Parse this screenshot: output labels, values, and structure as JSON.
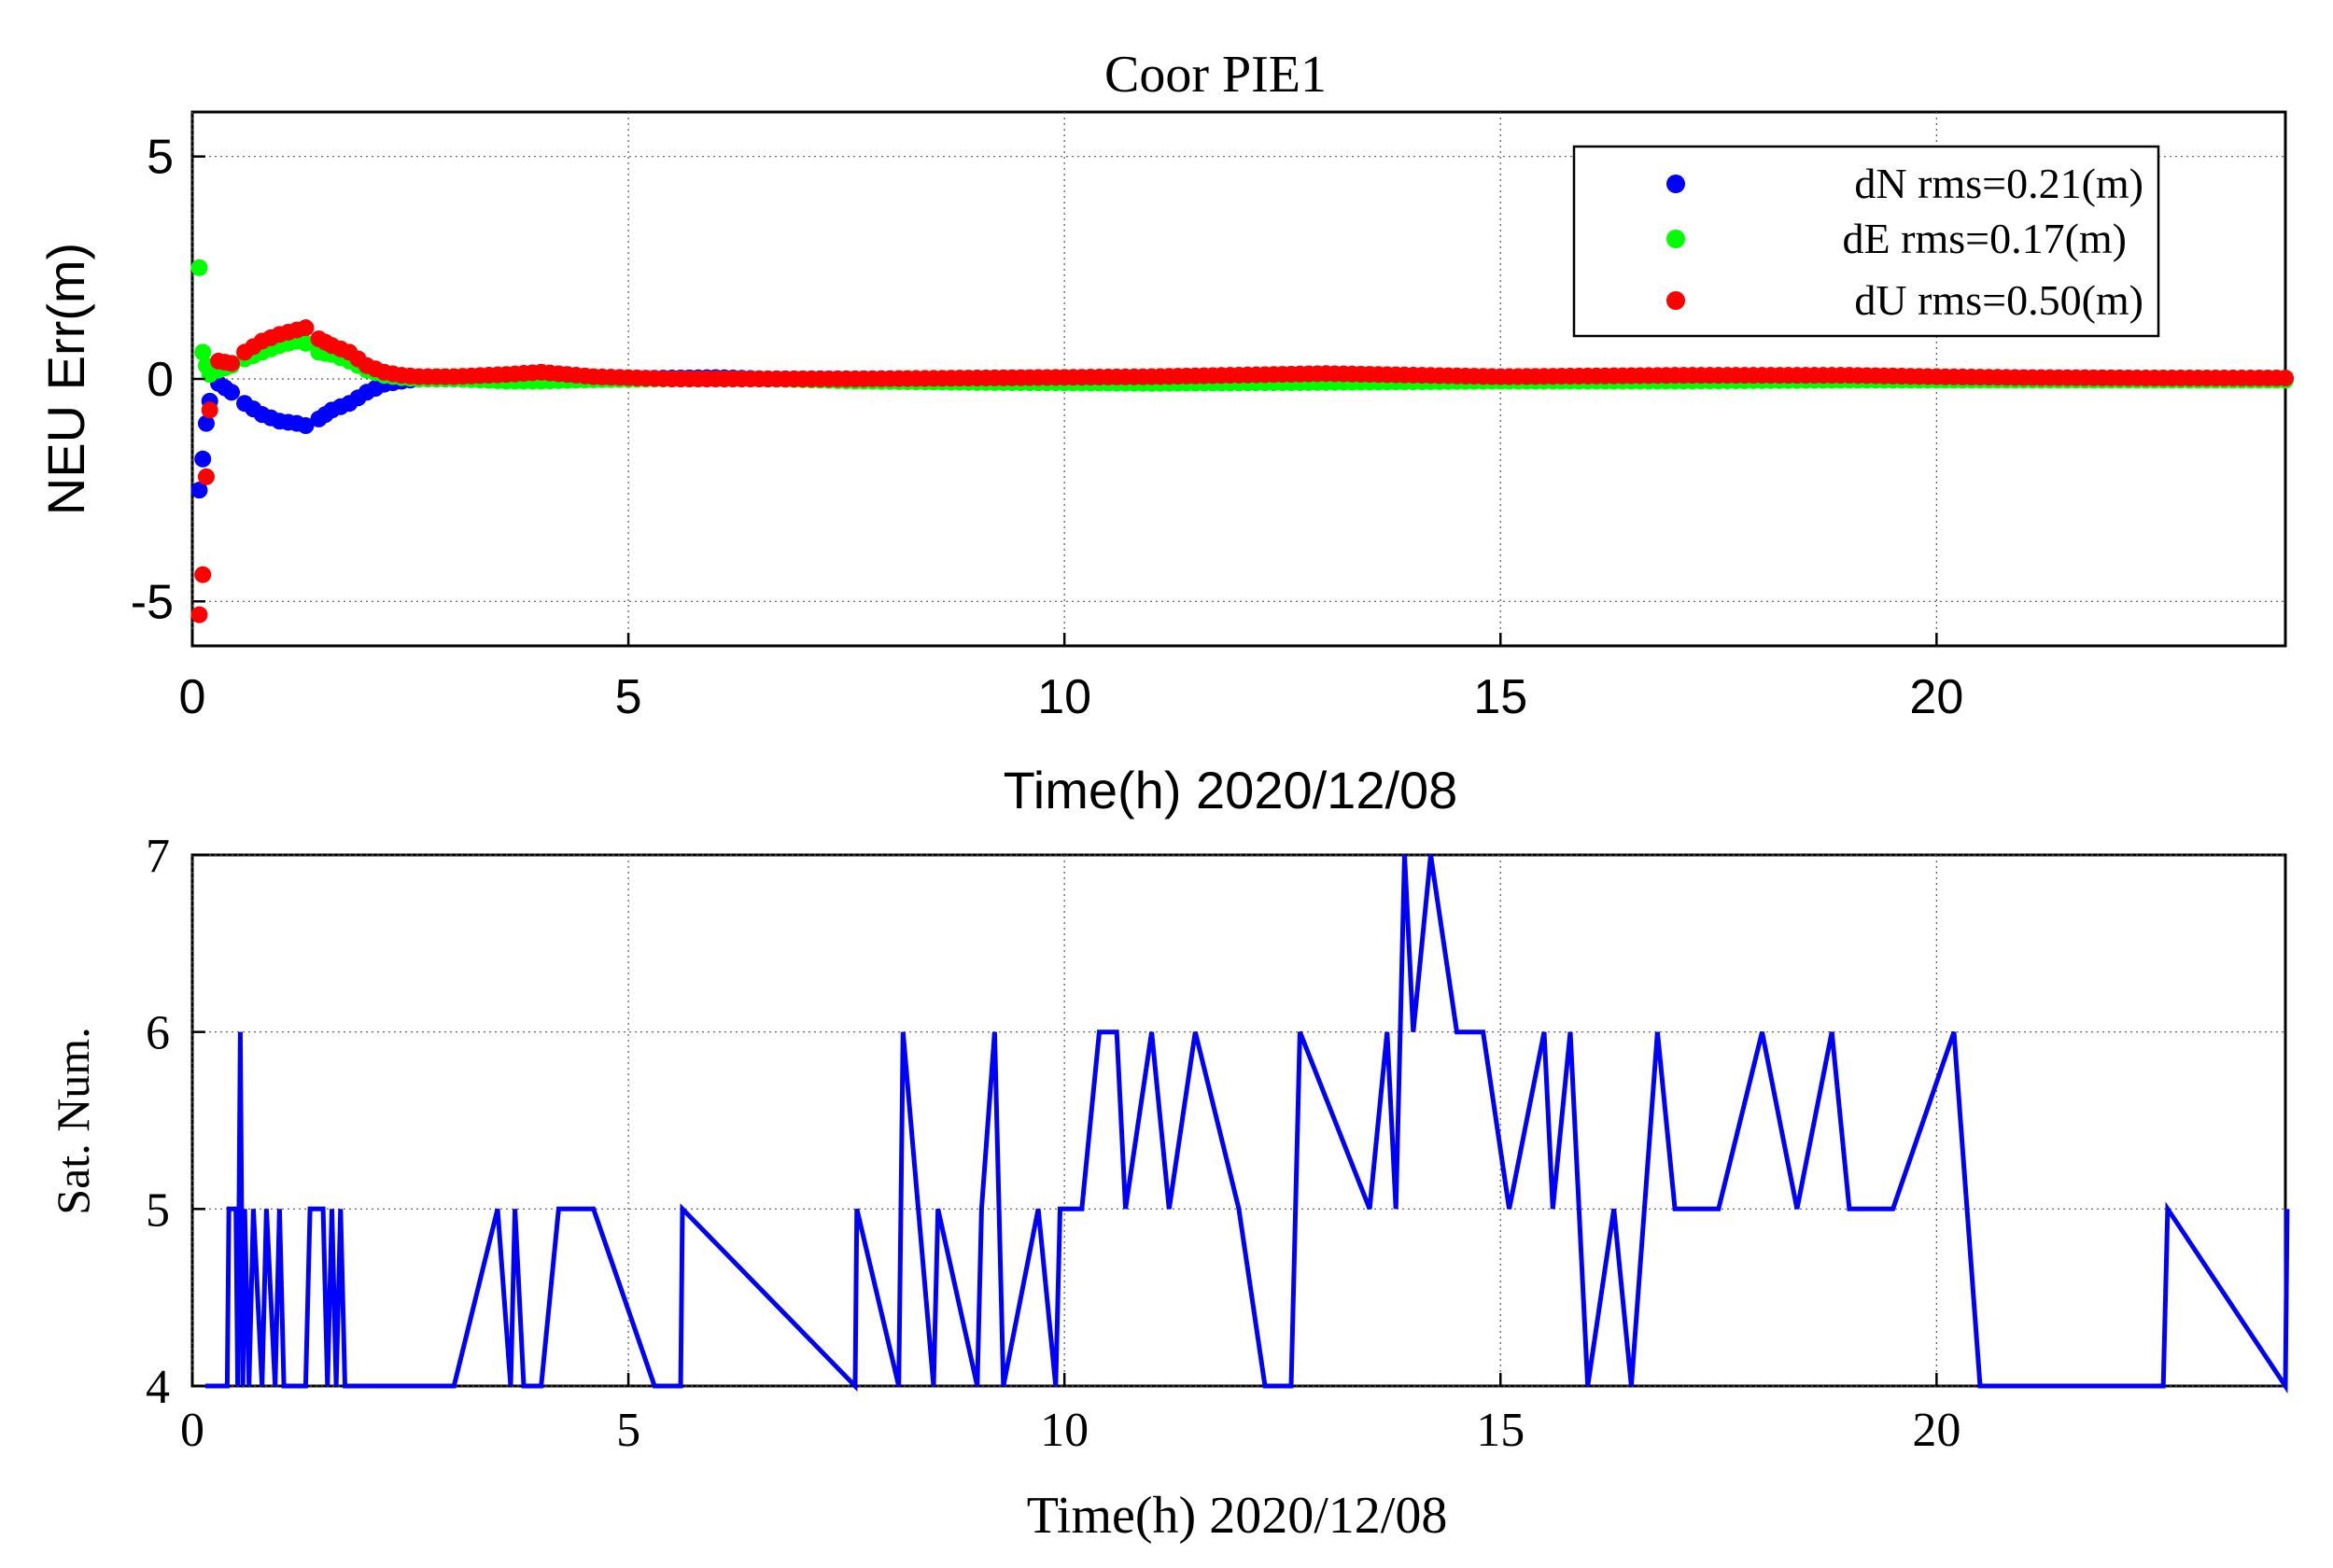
{
  "chart_data": [
    {
      "type": "scatter",
      "title": "Coor PIE1",
      "xlabel": "Time(h) 2020/12/08",
      "ylabel": "NEU Err(m)",
      "xlim": [
        0,
        24
      ],
      "ylim": [
        -6,
        6
      ],
      "xticks": [
        "0",
        "5",
        "10",
        "15",
        "20"
      ],
      "yticks": [
        "5",
        "0",
        "-5"
      ],
      "grid": "dotted",
      "legend_position": "top-right",
      "legend": [
        "dN rms=0.21(m)",
        "dE rms=0.17(m)",
        "dU rms=0.50(m)"
      ],
      "series": [
        {
          "name": "dN rms=0.21(m)",
          "color": "#0000ff",
          "x": [
            0.08,
            0.12,
            0.16,
            0.2,
            0.3,
            0.45,
            0.6,
            0.8,
            1.0,
            1.2,
            1.3,
            1.45,
            1.6,
            1.8,
            2.0,
            2.2,
            2.4,
            2.6,
            3.0,
            3.6,
            4.0,
            4.6,
            5.5,
            6.0,
            6.6,
            7.6,
            9.0,
            11.0,
            13.0,
            15.0,
            17.0,
            19.0,
            20.0,
            21.0,
            22.5,
            24.0
          ],
          "y": [
            -2.5,
            -1.8,
            -1.0,
            -0.5,
            -0.1,
            -0.3,
            -0.55,
            -0.8,
            -0.95,
            -1.0,
            -1.05,
            -0.9,
            -0.7,
            -0.55,
            -0.3,
            -0.12,
            -0.05,
            0.0,
            0.0,
            0.0,
            0.02,
            0.0,
            0.02,
            0.03,
            0.0,
            0.0,
            0.0,
            0.0,
            0.0,
            0.0,
            0.0,
            0.0,
            0.0,
            0.0,
            0.0,
            0.0
          ]
        },
        {
          "name": "dE rms=0.17(m)",
          "color": "#00ff00",
          "x": [
            0.08,
            0.12,
            0.16,
            0.2,
            0.3,
            0.45,
            0.6,
            0.8,
            1.0,
            1.2,
            1.3,
            1.45,
            1.6,
            1.8,
            2.0,
            2.2,
            2.4,
            2.6,
            3.0,
            3.6,
            4.0,
            4.6,
            5.5,
            6.0,
            6.6,
            7.6,
            9.0,
            11.0,
            13.0,
            15.0,
            17.0,
            19.0,
            20.0,
            21.0,
            22.5,
            24.0
          ],
          "y": [
            2.5,
            0.6,
            0.3,
            0.1,
            0.2,
            0.3,
            0.45,
            0.6,
            0.75,
            0.85,
            0.8,
            0.6,
            0.55,
            0.4,
            0.2,
            0.08,
            0.03,
            0.0,
            0.0,
            -0.05,
            -0.05,
            -0.02,
            0.0,
            0.0,
            0.0,
            -0.05,
            -0.08,
            -0.1,
            -0.08,
            -0.05,
            -0.05,
            -0.03,
            -0.03,
            -0.03,
            -0.03,
            -0.03
          ]
        },
        {
          "name": "dU rms=0.50(m)",
          "color": "#ff0000",
          "x": [
            0.08,
            0.12,
            0.16,
            0.2,
            0.3,
            0.45,
            0.6,
            0.8,
            1.0,
            1.2,
            1.3,
            1.45,
            1.6,
            1.8,
            2.0,
            2.2,
            2.4,
            2.6,
            3.0,
            3.6,
            4.0,
            4.6,
            5.5,
            6.0,
            6.6,
            7.6,
            9.0,
            11.0,
            13.0,
            15.0,
            17.0,
            19.0,
            20.0,
            21.0,
            22.5,
            24.0
          ],
          "y": [
            -5.3,
            -4.4,
            -2.2,
            -0.7,
            0.4,
            0.35,
            0.6,
            0.85,
            1.0,
            1.1,
            1.15,
            0.9,
            0.75,
            0.6,
            0.3,
            0.15,
            0.08,
            0.05,
            0.05,
            0.1,
            0.15,
            0.05,
            0.0,
            0.0,
            0.0,
            0.0,
            0.02,
            0.05,
            0.12,
            0.05,
            0.08,
            0.08,
            0.05,
            0.03,
            0.02,
            0.02
          ]
        }
      ]
    },
    {
      "type": "line",
      "xlabel": "Time(h) 2020/12/08",
      "ylabel": "Sat. Num.",
      "xlim": [
        0,
        24
      ],
      "ylim": [
        4,
        7
      ],
      "xticks": [
        "0",
        "5",
        "10",
        "15",
        "20"
      ],
      "yticks": [
        "7",
        "6",
        "5",
        "4"
      ],
      "grid": "dotted",
      "series": [
        {
          "name": "Sat. Num.",
          "color": "#0000ff",
          "x": [
            0.15,
            0.4,
            0.42,
            0.5,
            0.52,
            0.55,
            0.58,
            0.6,
            0.65,
            0.7,
            0.8,
            0.85,
            0.95,
            1.0,
            1.05,
            1.3,
            1.35,
            1.5,
            1.55,
            1.6,
            1.65,
            1.7,
            1.75,
            1.8,
            3.0,
            3.5,
            3.65,
            3.7,
            3.8,
            4.0,
            4.2,
            4.6,
            5.3,
            5.6,
            5.62,
            7.6,
            7.62,
            8.1,
            8.15,
            8.5,
            8.55,
            9.0,
            9.05,
            9.2,
            9.3,
            9.7,
            9.9,
            9.95,
            10.2,
            10.4,
            10.6,
            10.7,
            11.0,
            11.2,
            11.5,
            12.0,
            12.3,
            12.6,
            12.7,
            13.5,
            13.7,
            13.8,
            13.9,
            14.0,
            14.2,
            14.5,
            14.8,
            15.1,
            15.5,
            15.6,
            15.8,
            16.0,
            16.3,
            16.5,
            16.8,
            17.0,
            17.5,
            18.0,
            18.4,
            18.8,
            19.0,
            19.5,
            20.2,
            20.5,
            20.6,
            22.6,
            22.65,
            24.0,
            24.02
          ],
          "y": [
            4,
            4,
            5,
            5,
            4,
            6,
            4,
            5,
            4,
            5,
            4,
            5,
            4,
            5,
            4,
            4,
            5,
            5,
            4,
            5,
            4,
            5,
            4,
            4,
            4,
            5,
            4,
            5,
            4,
            4,
            5,
            5,
            4,
            4,
            5,
            4,
            5,
            4,
            6,
            4,
            5,
            4,
            5,
            6,
            4,
            5,
            4,
            5,
            5,
            6,
            6,
            5,
            6,
            5,
            6,
            5,
            4,
            4,
            6,
            5,
            6,
            5,
            7,
            6,
            7,
            6,
            6,
            5,
            6,
            5,
            6,
            4,
            5,
            4,
            6,
            5,
            5,
            6,
            5,
            6,
            5,
            5,
            6,
            4,
            4,
            4,
            5,
            4,
            5
          ]
        }
      ]
    }
  ]
}
